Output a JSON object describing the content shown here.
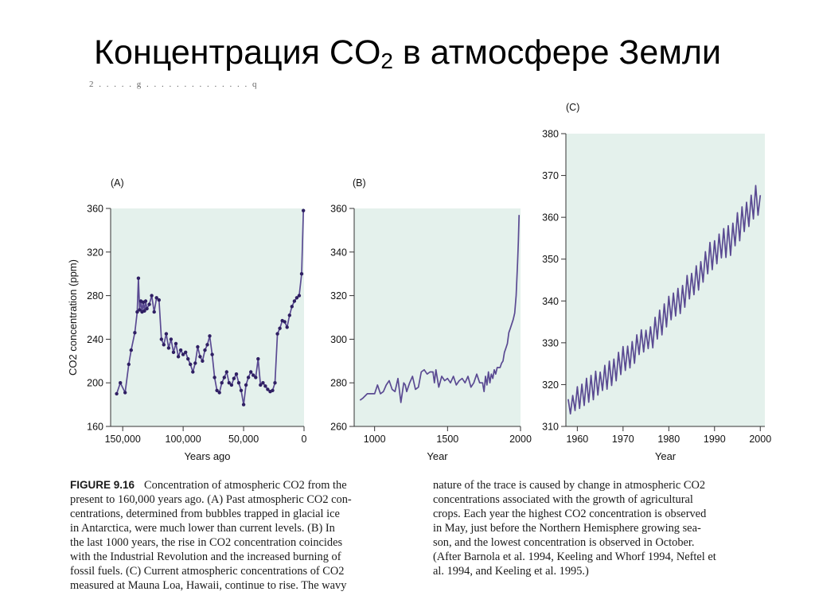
{
  "title": {
    "prefix": "Концентрация CO",
    "sub": "2",
    "suffix": " в атмосфере Земли"
  },
  "top_scrap": "2 . . . . . g . . . . . . . . . . . . . . q",
  "colors": {
    "plot_bg": "#e4f1ec",
    "line": "#5a4a92",
    "marker": "#2f1f63",
    "axis": "#333333"
  },
  "caption": {
    "label": "FIGURE 9.16",
    "left_lines": [
      "Concentration of atmospheric CO2 from the",
      "present to 160,000 years ago. (A) Past atmospheric CO2 con-",
      "centrations, determined from bubbles trapped in glacial ice",
      "in Antarctica, were much lower than current levels. (B) In",
      "the last 1000 years, the rise in CO2 concentration coincides",
      "with the Industrial Revolution and the increased burning of",
      "fossil fuels. (C) Current atmospheric concentrations of CO2",
      "measured at Mauna Loa, Hawaii, continue to rise. The wavy"
    ],
    "right_lines": [
      "nature of the trace is caused by change in atmospheric CO2",
      "concentrations associated with the growth of agricultural",
      "crops. Each year the highest CO2 concentration is observed",
      "in May, just before the Northern Hemisphere growing sea-",
      "son, and the lowest concentration is observed in October.",
      "(After Barnola et al. 1994, Keeling and Whorf 1994, Neftel et",
      "al. 1994, and Keeling et al. 1995.)"
    ]
  },
  "chart_data": [
    {
      "panel": "(A)",
      "type": "line",
      "markers": true,
      "xlabel": "Years ago",
      "ylabel": "CO2 concentration (ppm)",
      "xlim": [
        160000,
        0
      ],
      "ylim": [
        160,
        360
      ],
      "xticks": [
        150000,
        100000,
        50000,
        0
      ],
      "xtick_labels": [
        "150,000",
        "100,000",
        "50,000",
        "0"
      ],
      "yticks": [
        160,
        200,
        240,
        280,
        320,
        360
      ],
      "ytick_labels": [
        "160",
        "200",
        "240",
        "280",
        "320",
        "360"
      ],
      "x": [
        155000,
        152000,
        148000,
        145000,
        143000,
        140000,
        138000,
        137000,
        136000,
        135000,
        134000,
        133000,
        132000,
        131000,
        130000,
        128000,
        126000,
        124000,
        122000,
        120000,
        118000,
        116000,
        114000,
        112000,
        110000,
        108000,
        106000,
        104000,
        102000,
        100000,
        98000,
        96000,
        94000,
        92000,
        90000,
        88000,
        86000,
        84000,
        82000,
        80000,
        78000,
        76000,
        74000,
        72000,
        70000,
        68000,
        66000,
        64000,
        62000,
        60000,
        58000,
        56000,
        54000,
        52000,
        50000,
        48000,
        46000,
        44000,
        42000,
        40000,
        38000,
        36000,
        34000,
        32000,
        30000,
        28000,
        26000,
        24000,
        22000,
        20000,
        18000,
        16000,
        14000,
        12000,
        10000,
        8000,
        6000,
        4000,
        2000,
        500
      ],
      "values": [
        190,
        200,
        191,
        217,
        230,
        246,
        265,
        296,
        267,
        275,
        265,
        274,
        266,
        275,
        268,
        272,
        280,
        265,
        278,
        276,
        240,
        235,
        245,
        232,
        240,
        228,
        236,
        224,
        230,
        226,
        228,
        222,
        217,
        210,
        218,
        233,
        224,
        220,
        230,
        235,
        243,
        226,
        205,
        193,
        191,
        200,
        205,
        210,
        200,
        198,
        204,
        208,
        200,
        193,
        180,
        198,
        205,
        210,
        207,
        205,
        222,
        198,
        200,
        197,
        194,
        192,
        193,
        200,
        245,
        250,
        257,
        256,
        251,
        262,
        270,
        275,
        278,
        280,
        300,
        358
      ]
    },
    {
      "panel": "(B)",
      "type": "line",
      "xlabel": "Year",
      "ylabel": "",
      "xlim": [
        860,
        2000
      ],
      "ylim": [
        260,
        360
      ],
      "xticks": [
        1000,
        1500,
        2000
      ],
      "xtick_labels": [
        "1000",
        "1500",
        "2000"
      ],
      "yticks": [
        260,
        280,
        300,
        320,
        340,
        360
      ],
      "ytick_labels": [
        "260",
        "280",
        "300",
        "320",
        "340",
        "360"
      ],
      "x": [
        900,
        920,
        950,
        980,
        1000,
        1020,
        1040,
        1060,
        1080,
        1100,
        1120,
        1140,
        1160,
        1180,
        1200,
        1210,
        1220,
        1240,
        1260,
        1280,
        1300,
        1320,
        1340,
        1360,
        1380,
        1400,
        1410,
        1420,
        1440,
        1460,
        1480,
        1500,
        1520,
        1540,
        1560,
        1580,
        1600,
        1620,
        1640,
        1660,
        1680,
        1700,
        1720,
        1740,
        1750,
        1760,
        1770,
        1780,
        1790,
        1800,
        1810,
        1820,
        1830,
        1840,
        1850,
        1860,
        1870,
        1880,
        1890,
        1900,
        1910,
        1920,
        1930,
        1940,
        1950,
        1960,
        1970,
        1980,
        1985,
        1990
      ],
      "values": [
        272,
        273,
        275,
        275,
        275,
        279,
        275,
        276,
        279,
        281,
        277,
        276,
        282,
        271,
        280,
        279,
        276,
        280,
        283,
        277,
        278,
        285,
        286,
        284,
        285,
        285,
        280,
        286,
        278,
        283,
        281,
        282,
        280,
        283,
        279,
        281,
        282,
        280,
        283,
        278,
        280,
        284,
        280,
        280,
        276,
        283,
        279,
        285,
        280,
        284,
        282,
        286,
        284,
        287,
        287,
        287,
        289,
        290,
        294,
        296,
        298,
        303,
        305,
        307,
        309,
        312,
        320,
        335,
        345,
        357
      ]
    },
    {
      "panel": "(C)",
      "type": "line",
      "xlabel": "Year",
      "ylabel": "",
      "xlim": [
        1957.5,
        2001
      ],
      "ylim": [
        310,
        380
      ],
      "xticks": [
        1960,
        1970,
        1980,
        1990,
        2000
      ],
      "xtick_labels": [
        "1960",
        "1970",
        "1980",
        "1990",
        "2000"
      ],
      "yticks": [
        310,
        320,
        330,
        340,
        350,
        360,
        370,
        380
      ],
      "ytick_labels": [
        "310",
        "320",
        "330",
        "340",
        "350",
        "360",
        "370",
        "380"
      ],
      "x": [
        1958.0,
        1958.5,
        1959.0,
        1959.5,
        1960.0,
        1960.5,
        1961.0,
        1961.5,
        1962.0,
        1962.5,
        1963.0,
        1963.5,
        1964.0,
        1964.5,
        1965.0,
        1965.5,
        1966.0,
        1966.5,
        1967.0,
        1967.5,
        1968.0,
        1968.5,
        1969.0,
        1969.5,
        1970.0,
        1970.5,
        1971.0,
        1971.5,
        1972.0,
        1972.5,
        1973.0,
        1973.5,
        1974.0,
        1974.5,
        1975.0,
        1975.5,
        1976.0,
        1976.5,
        1977.0,
        1977.5,
        1978.0,
        1978.5,
        1979.0,
        1979.5,
        1980.0,
        1980.5,
        1981.0,
        1981.5,
        1982.0,
        1982.5,
        1983.0,
        1983.5,
        1984.0,
        1984.5,
        1985.0,
        1985.5,
        1986.0,
        1986.5,
        1987.0,
        1987.5,
        1988.0,
        1988.5,
        1989.0,
        1989.5,
        1990.0,
        1990.5,
        1991.0,
        1991.5,
        1992.0,
        1992.5,
        1993.0,
        1993.5,
        1994.0,
        1994.5,
        1995.0,
        1995.5,
        1996.0,
        1996.5,
        1997.0,
        1997.5,
        1998.0,
        1998.5,
        1999.0,
        1999.5,
        2000.0
      ],
      "values": [
        316.5,
        313.0,
        317.4,
        313.8,
        319.5,
        314.3,
        320.1,
        315.0,
        321.5,
        315.8,
        322.2,
        316.4,
        323.2,
        317.5,
        323.0,
        318.6,
        324.6,
        318.9,
        325.6,
        319.8,
        326.1,
        320.9,
        327.7,
        322.4,
        329.1,
        323.4,
        329.2,
        324.0,
        330.3,
        325.1,
        331.9,
        327.2,
        333.1,
        327.8,
        333.0,
        328.6,
        333.8,
        328.8,
        336.1,
        330.9,
        337.8,
        331.9,
        339.3,
        333.8,
        341.1,
        335.5,
        341.9,
        336.4,
        343.0,
        337.0,
        343.7,
        338.5,
        346.1,
        340.5,
        346.6,
        341.5,
        348.4,
        342.6,
        349.4,
        344.5,
        351.8,
        346.5,
        354.0,
        347.5,
        354.4,
        348.9,
        356.0,
        350.3,
        357.3,
        350.4,
        358.0,
        350.9,
        358.6,
        353.2,
        361.1,
        354.4,
        362.5,
        356.6,
        363.6,
        357.8,
        365.3,
        359.6,
        367.6,
        360.5,
        365.3
      ]
    }
  ]
}
